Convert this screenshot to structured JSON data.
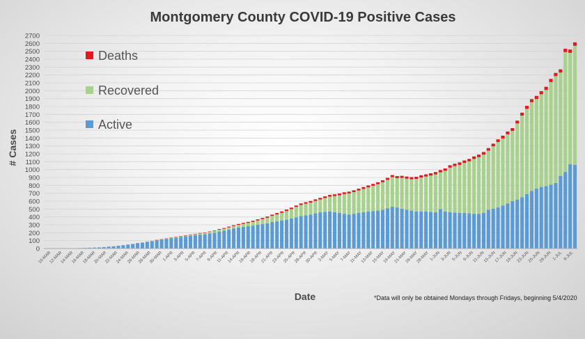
{
  "chart_data": {
    "type": "bar",
    "stacked": true,
    "title": "Montgomery County COVID-19 Positive Cases",
    "xlabel": "Date",
    "ylabel": "# Cases",
    "ylim": [
      0,
      2700
    ],
    "y_ticks": [
      0,
      100,
      200,
      300,
      400,
      500,
      600,
      700,
      800,
      900,
      1000,
      1100,
      1200,
      1300,
      1400,
      1500,
      1600,
      1700,
      1800,
      1900,
      2000,
      2100,
      2200,
      2300,
      2400,
      2500,
      2600,
      2700
    ],
    "x_tick_labels": [
      "10-MAR",
      "12-MAR",
      "14-MAR",
      "16-MAR",
      "18-MAR",
      "20-MAR",
      "22-MAR",
      "24-MAR",
      "26-MAR",
      "28-MAR",
      "30-MAR",
      "1-APR",
      "3-APR",
      "5-APR",
      "7-APR",
      "9-APR",
      "11-APR",
      "14-APR",
      "16-APR",
      "18-APR",
      "21-APR",
      "23-APR",
      "25-APR",
      "28-APR",
      "30-APR",
      "2-MAY",
      "5-MAY",
      "7-MAY",
      "11-MAY",
      "13-MAY",
      "15-MAY",
      "19-MAY",
      "21-MAY",
      "26-MAY",
      "28-MAY",
      "1-JUN",
      "3-JUN",
      "5-JUN",
      "9-JUN",
      "11-JUN",
      "15-JUN",
      "17-JUN",
      "19-JUN",
      "23-JUN",
      "25-JUN",
      "29-JUN",
      "1-JUL",
      "6-JUL"
    ],
    "legend": [
      "Deaths",
      "Recovered",
      "Active"
    ],
    "legend_position": "top-left",
    "series": [
      {
        "name": "Active",
        "color": "#5b9bd5",
        "values": [
          0,
          1,
          2,
          2,
          2,
          3,
          4,
          6,
          8,
          10,
          12,
          14,
          18,
          24,
          28,
          35,
          42,
          50,
          58,
          68,
          76,
          86,
          95,
          104,
          112,
          120,
          128,
          136,
          145,
          155,
          162,
          168,
          175,
          180,
          190,
          200,
          215,
          225,
          240,
          255,
          265,
          275,
          282,
          290,
          300,
          310,
          320,
          335,
          345,
          355,
          365,
          380,
          395,
          410,
          420,
          430,
          445,
          460,
          465,
          470,
          460,
          450,
          440,
          430,
          440,
          450,
          460,
          470,
          475,
          480,
          490,
          510,
          530,
          520,
          505,
          490,
          480,
          470,
          470,
          470,
          465,
          460,
          500,
          470,
          460,
          455,
          450,
          450,
          445,
          440,
          440,
          450,
          490,
          505,
          520,
          545,
          570,
          600,
          620,
          650,
          690,
          730,
          760,
          780,
          790,
          810,
          830,
          920,
          970,
          1070,
          1060
        ]
      },
      {
        "name": "Recovered",
        "color": "#a9d18e",
        "values": [
          0,
          0,
          0,
          0,
          0,
          0,
          0,
          0,
          0,
          0,
          0,
          0,
          0,
          0,
          0,
          0,
          0,
          0,
          0,
          0,
          2,
          2,
          3,
          4,
          5,
          6,
          8,
          9,
          10,
          10,
          12,
          14,
          16,
          18,
          20,
          22,
          24,
          26,
          28,
          30,
          35,
          38,
          42,
          48,
          55,
          62,
          70,
          78,
          88,
          98,
          110,
          120,
          132,
          142,
          148,
          152,
          158,
          162,
          175,
          188,
          205,
          225,
          250,
          268,
          275,
          285,
          295,
          305,
          320,
          335,
          350,
          360,
          375,
          372,
          390,
          395,
          398,
          412,
          430,
          442,
          460,
          480,
          465,
          515,
          565,
          590,
          610,
          635,
          660,
          695,
          718,
          740,
          750,
          790,
          830,
          850,
          878,
          890,
          965,
          1035,
          1080,
          1125,
          1135,
          1175,
          1220,
          1300,
          1355,
          1310,
          1520,
          1410,
          1510
        ]
      },
      {
        "name": "Deaths",
        "color": "#e0191e",
        "values": [
          0,
          0,
          0,
          0,
          0,
          0,
          0,
          0,
          0,
          0,
          0,
          0,
          0,
          0,
          0,
          0,
          0,
          0,
          0,
          0,
          0,
          0,
          0,
          1,
          1,
          1,
          2,
          2,
          3,
          3,
          4,
          4,
          5,
          5,
          6,
          7,
          8,
          9,
          10,
          10,
          11,
          12,
          13,
          14,
          15,
          15,
          16,
          16,
          17,
          17,
          18,
          18,
          18,
          19,
          19,
          20,
          20,
          20,
          21,
          21,
          22,
          22,
          22,
          23,
          23,
          23,
          24,
          24,
          24,
          25,
          25,
          25,
          26,
          26,
          26,
          27,
          27,
          27,
          28,
          28,
          28,
          29,
          29,
          30,
          30,
          30,
          31,
          31,
          31,
          32,
          32,
          33,
          33,
          34,
          34,
          35,
          35,
          36,
          36,
          37,
          38,
          38,
          39,
          39,
          40,
          40,
          41,
          41,
          42,
          42,
          43
        ]
      }
    ]
  },
  "footnote": "*Data will only be obtained Mondays through Fridays, beginning 5/4/2020"
}
